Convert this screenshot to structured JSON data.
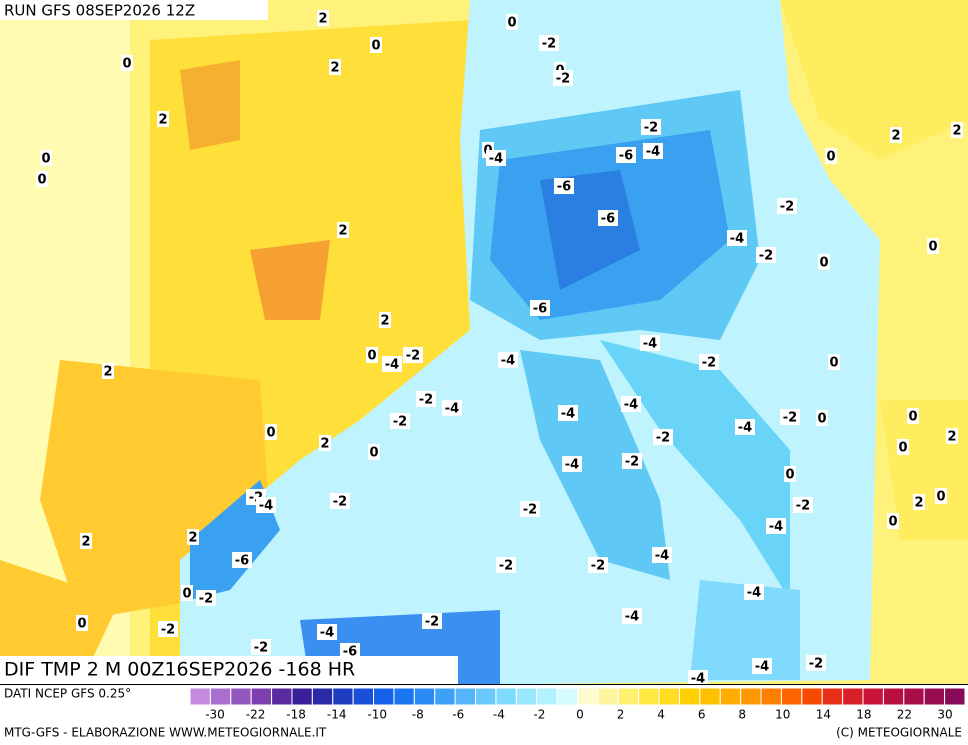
{
  "header": {
    "run": "RUN GFS 08SEP2026 12Z"
  },
  "map": {
    "title": "DIF TMP 2 M 00Z16SEP2026 -168 HR",
    "labels": [
      2,
      0,
      0,
      -2,
      0,
      2,
      0,
      -2,
      2,
      -2,
      2,
      2,
      0,
      0,
      0,
      -4,
      -6,
      -4,
      0,
      -6,
      -2,
      -6,
      2,
      -4,
      -2,
      0,
      0,
      -6,
      2,
      0,
      -4,
      -2,
      -4,
      -4,
      -2,
      0,
      2,
      -2,
      -4,
      -4,
      -2,
      -4,
      -2,
      0,
      0,
      -4,
      2,
      -2,
      0,
      2,
      0,
      0,
      -2,
      -4,
      0,
      -2,
      -4,
      -2,
      -2,
      2,
      0,
      -2,
      0,
      -4,
      2,
      2,
      -4,
      -6,
      -2,
      -2,
      0,
      -2,
      -4,
      -4,
      0,
      -2,
      -2,
      -4,
      -2,
      -6,
      -4,
      -2,
      -4
    ]
  },
  "footer": {
    "source": "DATI NCEP GFS 0.25°",
    "credit": "MTG-GFS - ELABORAZIONE WWW.METEOGIORNALE.IT",
    "copyright": "(C) METEOGIORNALE"
  },
  "colorbar": {
    "colors": [
      "#c58be0",
      "#a86fd0",
      "#9457c0",
      "#7e3fb0",
      "#5a2aa0",
      "#3a1f98",
      "#2a2aa8",
      "#1f3dc0",
      "#1a4fd8",
      "#1560e8",
      "#1a75f0",
      "#2a8af5",
      "#3fa0f8",
      "#55b5fa",
      "#6ac8fc",
      "#80dafd",
      "#98e8fe",
      "#b0f2ff",
      "#d6fbff",
      "#fffbd0",
      "#fff5a0",
      "#fff070",
      "#ffe840",
      "#ffdd20",
      "#ffd000",
      "#ffc000",
      "#ffad00",
      "#ff9800",
      "#ff8000",
      "#ff6400",
      "#f54a00",
      "#e83018",
      "#d81e28",
      "#c81438",
      "#b8103f",
      "#a80e48",
      "#980c50",
      "#880a58"
    ],
    "ticks": [
      -30,
      -22,
      -18,
      -14,
      -10,
      -8,
      -6,
      -4,
      -2,
      0,
      2,
      4,
      6,
      8,
      10,
      14,
      18,
      22,
      30
    ]
  }
}
